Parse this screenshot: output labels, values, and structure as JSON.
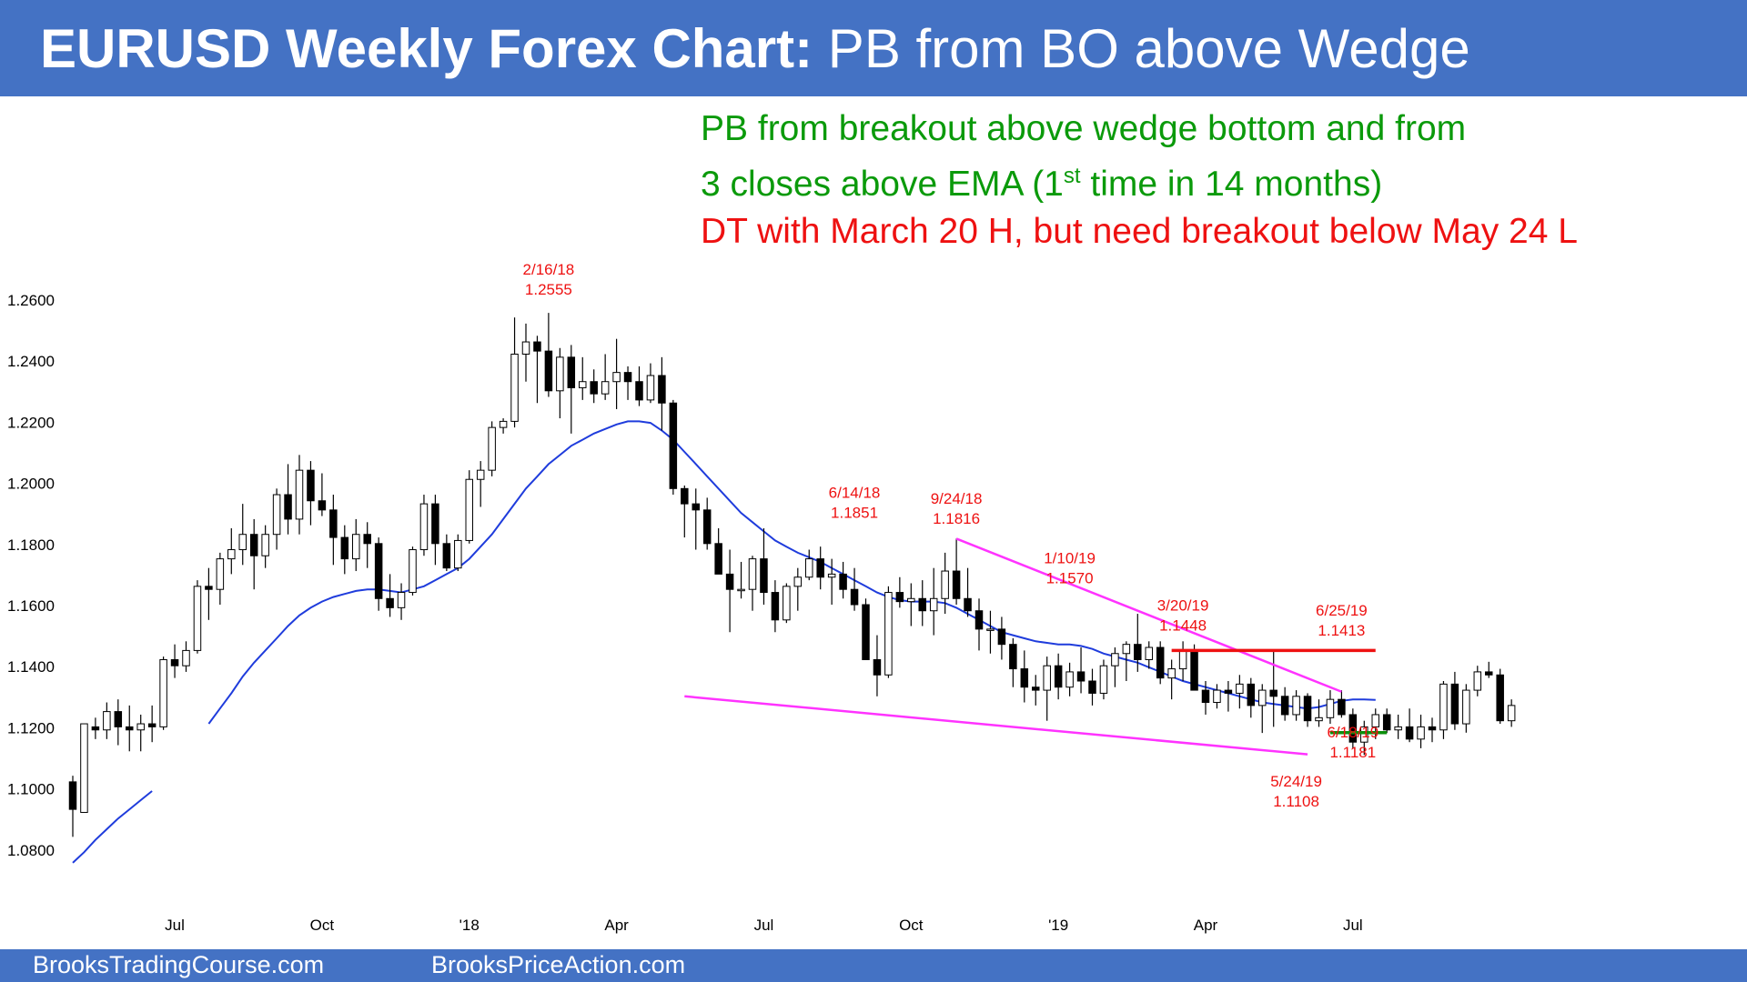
{
  "header": {
    "title_bold": "EURUSD Weekly Forex Chart:",
    "title_rest": " PB from BO above Wedge"
  },
  "notes": {
    "line1": "PB from breakout above wedge bottom and from",
    "line2_a": "3 closes above EMA (1",
    "line2_sup": "st",
    "line2_b": " time in 14 months)",
    "line3": "DT with March 20 H, but need breakout below May 24 L"
  },
  "footer": {
    "left": "BrooksTradingCourse.com",
    "right": "BrooksPriceAction.com"
  },
  "colors": {
    "header_bg": "#4472c4",
    "ema": "#1f3cdc",
    "wedge": "#ff33ff",
    "dt_line": "#ee1111",
    "support_line": "#0b8f0b",
    "annotation": "#ee1111",
    "green_text": "#0b9a0b"
  },
  "chart_data": {
    "type": "candlestick",
    "title": "EURUSD Weekly Forex Chart",
    "ylim": [
      1.07,
      1.275
    ],
    "yticks": [
      "1.0800",
      "1.1000",
      "1.1200",
      "1.1400",
      "1.1600",
      "1.1800",
      "1.2000",
      "1.2200",
      "1.2400",
      "1.2600"
    ],
    "xticks": [
      {
        "label": "Jul",
        "bar": 9
      },
      {
        "label": "Oct",
        "bar": 22
      },
      {
        "label": "'18",
        "bar": 35
      },
      {
        "label": "Apr",
        "bar": 48
      },
      {
        "label": "Jul",
        "bar": 61
      },
      {
        "label": "Oct",
        "bar": 74
      },
      {
        "label": "'19",
        "bar": 87
      },
      {
        "label": "Apr",
        "bar": 100
      },
      {
        "label": "Jul",
        "bar": 113
      }
    ],
    "bars": [
      [
        1.102,
        1.104,
        1.084,
        1.093
      ],
      [
        1.092,
        1.121,
        1.092,
        1.121
      ],
      [
        1.12,
        1.123,
        1.116,
        1.119
      ],
      [
        1.119,
        1.128,
        1.116,
        1.125
      ],
      [
        1.125,
        1.129,
        1.114,
        1.12
      ],
      [
        1.12,
        1.127,
        1.112,
        1.119
      ],
      [
        1.119,
        1.124,
        1.112,
        1.121
      ],
      [
        1.121,
        1.127,
        1.115,
        1.12
      ],
      [
        1.12,
        1.143,
        1.119,
        1.142
      ],
      [
        1.142,
        1.147,
        1.136,
        1.14
      ],
      [
        1.14,
        1.148,
        1.138,
        1.145
      ],
      [
        1.145,
        1.168,
        1.144,
        1.166
      ],
      [
        1.166,
        1.172,
        1.155,
        1.165
      ],
      [
        1.165,
        1.177,
        1.16,
        1.175
      ],
      [
        1.175,
        1.185,
        1.17,
        1.178
      ],
      [
        1.178,
        1.193,
        1.173,
        1.183
      ],
      [
        1.183,
        1.188,
        1.165,
        1.176
      ],
      [
        1.176,
        1.186,
        1.172,
        1.183
      ],
      [
        1.183,
        1.198,
        1.178,
        1.196
      ],
      [
        1.196,
        1.206,
        1.183,
        1.188
      ],
      [
        1.188,
        1.209,
        1.183,
        1.204
      ],
      [
        1.204,
        1.207,
        1.186,
        1.194
      ],
      [
        1.194,
        1.203,
        1.189,
        1.191
      ],
      [
        1.191,
        1.196,
        1.173,
        1.182
      ],
      [
        1.182,
        1.186,
        1.17,
        1.175
      ],
      [
        1.175,
        1.188,
        1.171,
        1.183
      ],
      [
        1.183,
        1.187,
        1.172,
        1.18
      ],
      [
        1.18,
        1.182,
        1.158,
        1.162
      ],
      [
        1.162,
        1.17,
        1.156,
        1.159
      ],
      [
        1.159,
        1.167,
        1.155,
        1.164
      ],
      [
        1.164,
        1.179,
        1.163,
        1.178
      ],
      [
        1.178,
        1.196,
        1.176,
        1.193
      ],
      [
        1.193,
        1.196,
        1.173,
        1.18
      ],
      [
        1.18,
        1.183,
        1.171,
        1.172
      ],
      [
        1.172,
        1.183,
        1.171,
        1.181
      ],
      [
        1.181,
        1.204,
        1.18,
        1.201
      ],
      [
        1.201,
        1.207,
        1.192,
        1.204
      ],
      [
        1.204,
        1.22,
        1.202,
        1.218
      ],
      [
        1.218,
        1.221,
        1.216,
        1.22
      ],
      [
        1.22,
        1.254,
        1.218,
        1.242
      ],
      [
        1.242,
        1.252,
        1.233,
        1.246
      ],
      [
        1.246,
        1.248,
        1.226,
        1.243
      ],
      [
        1.243,
        1.2555,
        1.228,
        1.23
      ],
      [
        1.23,
        1.244,
        1.221,
        1.241
      ],
      [
        1.241,
        1.245,
        1.216,
        1.231
      ],
      [
        1.231,
        1.241,
        1.227,
        1.233
      ],
      [
        1.233,
        1.237,
        1.226,
        1.229
      ],
      [
        1.229,
        1.242,
        1.227,
        1.233
      ],
      [
        1.233,
        1.247,
        1.224,
        1.236
      ],
      [
        1.236,
        1.238,
        1.227,
        1.233
      ],
      [
        1.233,
        1.238,
        1.225,
        1.227
      ],
      [
        1.227,
        1.239,
        1.226,
        1.235
      ],
      [
        1.235,
        1.241,
        1.217,
        1.226
      ],
      [
        1.226,
        1.227,
        1.196,
        1.198
      ],
      [
        1.198,
        1.199,
        1.182,
        1.193
      ],
      [
        1.193,
        1.198,
        1.178,
        1.191
      ],
      [
        1.191,
        1.195,
        1.178,
        1.18
      ],
      [
        1.18,
        1.185,
        1.17,
        1.17
      ],
      [
        1.17,
        1.178,
        1.151,
        1.165
      ],
      [
        1.165,
        1.174,
        1.162,
        1.165
      ],
      [
        1.165,
        1.176,
        1.158,
        1.175
      ],
      [
        1.175,
        1.185,
        1.16,
        1.164
      ],
      [
        1.164,
        1.168,
        1.151,
        1.155
      ],
      [
        1.155,
        1.167,
        1.154,
        1.166
      ],
      [
        1.166,
        1.172,
        1.158,
        1.169
      ],
      [
        1.169,
        1.178,
        1.168,
        1.175
      ],
      [
        1.175,
        1.179,
        1.165,
        1.169
      ],
      [
        1.169,
        1.175,
        1.16,
        1.17
      ],
      [
        1.17,
        1.174,
        1.162,
        1.165
      ],
      [
        1.165,
        1.172,
        1.158,
        1.16
      ],
      [
        1.16,
        1.162,
        1.147,
        1.142
      ],
      [
        1.142,
        1.15,
        1.13,
        1.137
      ],
      [
        1.137,
        1.166,
        1.136,
        1.164
      ],
      [
        1.164,
        1.169,
        1.159,
        1.161
      ],
      [
        1.161,
        1.167,
        1.153,
        1.162
      ],
      [
        1.162,
        1.168,
        1.153,
        1.158
      ],
      [
        1.158,
        1.172,
        1.15,
        1.162
      ],
      [
        1.162,
        1.177,
        1.157,
        1.171
      ],
      [
        1.171,
        1.1816,
        1.16,
        1.162
      ],
      [
        1.162,
        1.172,
        1.156,
        1.158
      ],
      [
        1.158,
        1.162,
        1.145,
        1.152
      ],
      [
        1.152,
        1.158,
        1.144,
        1.152
      ],
      [
        1.152,
        1.156,
        1.142,
        1.147
      ],
      [
        1.147,
        1.149,
        1.133,
        1.139
      ],
      [
        1.139,
        1.145,
        1.128,
        1.133
      ],
      [
        1.133,
        1.137,
        1.127,
        1.132
      ],
      [
        1.132,
        1.143,
        1.122,
        1.14
      ],
      [
        1.14,
        1.144,
        1.129,
        1.133
      ],
      [
        1.133,
        1.141,
        1.13,
        1.138
      ],
      [
        1.138,
        1.146,
        1.131,
        1.135
      ],
      [
        1.135,
        1.139,
        1.127,
        1.131
      ],
      [
        1.131,
        1.142,
        1.129,
        1.14
      ],
      [
        1.14,
        1.146,
        1.133,
        1.144
      ],
      [
        1.144,
        1.148,
        1.135,
        1.147
      ],
      [
        1.147,
        1.157,
        1.138,
        1.142
      ],
      [
        1.142,
        1.148,
        1.139,
        1.146
      ],
      [
        1.146,
        1.148,
        1.134,
        1.136
      ],
      [
        1.136,
        1.142,
        1.129,
        1.139
      ],
      [
        1.139,
        1.148,
        1.135,
        1.145
      ],
      [
        1.145,
        1.147,
        1.132,
        1.132
      ],
      [
        1.132,
        1.135,
        1.124,
        1.128
      ],
      [
        1.128,
        1.134,
        1.126,
        1.132
      ],
      [
        1.132,
        1.135,
        1.125,
        1.131
      ],
      [
        1.131,
        1.137,
        1.126,
        1.134
      ],
      [
        1.134,
        1.136,
        1.123,
        1.127
      ],
      [
        1.127,
        1.134,
        1.118,
        1.132
      ],
      [
        1.132,
        1.1448,
        1.12,
        1.13
      ],
      [
        1.13,
        1.133,
        1.122,
        1.124
      ],
      [
        1.124,
        1.132,
        1.122,
        1.13
      ],
      [
        1.13,
        1.131,
        1.12,
        1.122
      ],
      [
        1.122,
        1.129,
        1.12,
        1.123
      ],
      [
        1.123,
        1.132,
        1.121,
        1.129
      ],
      [
        1.129,
        1.132,
        1.123,
        1.124
      ],
      [
        1.124,
        1.126,
        1.113,
        1.115
      ],
      [
        1.115,
        1.122,
        1.1108,
        1.12
      ],
      [
        1.12,
        1.126,
        1.116,
        1.124
      ],
      [
        1.124,
        1.126,
        1.118,
        1.119
      ],
      [
        1.119,
        1.124,
        1.116,
        1.12
      ],
      [
        1.12,
        1.126,
        1.115,
        1.116
      ],
      [
        1.116,
        1.124,
        1.113,
        1.12
      ],
      [
        1.12,
        1.123,
        1.115,
        1.119
      ],
      [
        1.119,
        1.135,
        1.116,
        1.134
      ],
      [
        1.134,
        1.138,
        1.119,
        1.121
      ],
      [
        1.121,
        1.134,
        1.1181,
        1.132
      ],
      [
        1.132,
        1.14,
        1.13,
        1.138
      ],
      [
        1.138,
        1.1413,
        1.136,
        1.137
      ],
      [
        1.137,
        1.139,
        1.121,
        1.122
      ],
      [
        1.122,
        1.129,
        1.12,
        1.127
      ]
    ],
    "ema": [
      1.0755,
      1.079,
      1.083,
      1.0865,
      1.09,
      1.093,
      1.096,
      1.099,
      1.103,
      1.107,
      1.111,
      1.116,
      1.121,
      1.126,
      1.131,
      1.1365,
      1.141,
      1.145,
      1.149,
      1.153,
      1.1565,
      1.159,
      1.161,
      1.1625,
      1.1635,
      1.1645,
      1.165,
      1.165,
      1.1645,
      1.164,
      1.165,
      1.166,
      1.168,
      1.17,
      1.172,
      1.175,
      1.179,
      1.183,
      1.188,
      1.193,
      1.198,
      1.202,
      1.206,
      1.209,
      1.212,
      1.214,
      1.216,
      1.2175,
      1.219,
      1.22,
      1.22,
      1.2195,
      1.217,
      1.214,
      1.21,
      1.206,
      1.202,
      1.198,
      1.194,
      1.19,
      1.187,
      1.184,
      1.181,
      1.179,
      1.177,
      1.1755,
      1.174,
      1.172,
      1.17,
      1.168,
      1.166,
      1.164,
      1.1625,
      1.1615,
      1.161,
      1.161,
      1.161,
      1.1605,
      1.159,
      1.157,
      1.155,
      1.153,
      1.151,
      1.15,
      1.149,
      1.148,
      1.1475,
      1.147,
      1.147,
      1.1465,
      1.1455,
      1.144,
      1.143,
      1.142,
      1.141,
      1.1395,
      1.138,
      1.1365,
      1.135,
      1.134,
      1.133,
      1.132,
      1.131,
      1.13,
      1.129,
      1.128,
      1.1275,
      1.127,
      1.1265,
      1.126,
      1.1265,
      1.1275,
      1.1285,
      1.129,
      1.129,
      1.1288
    ],
    "ema_gaps": [
      [
        7,
        12
      ]
    ],
    "lines": [
      {
        "name": "wedge-top",
        "color": "#ff33ff",
        "from": {
          "bar": 78,
          "y": 1.1816
        },
        "to": {
          "bar": 112,
          "y": 1.1315
        }
      },
      {
        "name": "wedge-bottom",
        "color": "#ff33ff",
        "from": {
          "bar": 54,
          "y": 1.13
        },
        "to": {
          "bar": 109,
          "y": 1.111
        }
      },
      {
        "name": "dt-resistance",
        "color": "#ee1111",
        "from": {
          "bar": 97,
          "y": 1.145
        },
        "to": {
          "bar": 115,
          "y": 1.145
        }
      },
      {
        "name": "support",
        "color": "#0b8f0b",
        "from": {
          "bar": 111,
          "y": 1.1181
        },
        "to": {
          "bar": 116,
          "y": 1.1181
        }
      }
    ],
    "annotations": [
      {
        "bar": 42,
        "date": "2/16/18",
        "value": "1.2555",
        "y": 1.268
      },
      {
        "bar": 69,
        "date": "6/14/18",
        "value": "1.1851",
        "y": 1.195
      },
      {
        "bar": 78,
        "date": "9/24/18",
        "value": "1.1816",
        "y": 1.193
      },
      {
        "bar": 88,
        "date": "1/10/19",
        "value": "1.1570",
        "y": 1.1735
      },
      {
        "bar": 98,
        "date": "3/20/19",
        "value": "1.1448",
        "y": 1.158
      },
      {
        "bar": 112,
        "date": "6/25/19",
        "value": "1.1413",
        "y": 1.1565
      },
      {
        "bar": 113,
        "date": "6/18/19",
        "value": "1.1181",
        "y": 1.1165
      },
      {
        "bar": 108,
        "date": "5/24/19",
        "value": "1.1108",
        "y": 1.1005
      }
    ]
  }
}
